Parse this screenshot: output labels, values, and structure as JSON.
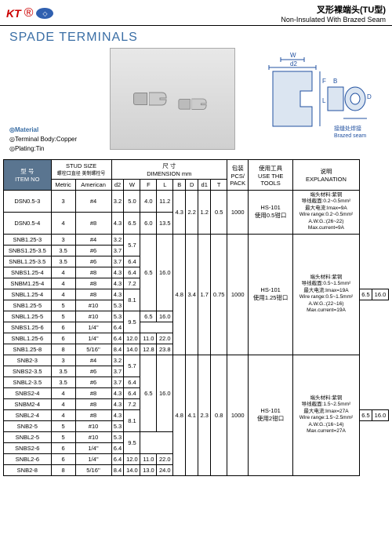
{
  "header": {
    "logo1": "KT",
    "title_cn": "叉形裸端头(TU型)",
    "title_en": "Non-Insulated With Brazed Seam"
  },
  "page_title": "SPADE TERMINALS",
  "material": {
    "h": "Material",
    "l1": "Terminal Body:Copper",
    "l2": "Plating:Tin"
  },
  "diagram": {
    "w": "W",
    "d2": "d2",
    "f": "F",
    "l": "L",
    "b": "B",
    "d": "D",
    "brazed_cn": "接缝处焊接",
    "brazed_en": "Brazed seam"
  },
  "thead": {
    "item_cn": "型 号",
    "item_en": "ITEM NO",
    "stud": "STUD SIZE",
    "stud_cn": "螺栓口直径 美制螺栓号",
    "metric": "Metric",
    "american": "American",
    "dim_cn": "尺 寸",
    "dim_en": "DIMENSION mm",
    "d2": "d2",
    "w": "W",
    "f": "F",
    "l": "L",
    "b": "B",
    "d": "D",
    "d1": "d1",
    "t": "T",
    "pack_cn": "包装",
    "pack_en": "PCS/\nPACK",
    "tool_cn": "使用工具",
    "tool_en": "USE THE\nTOOLS",
    "expl_cn": "说明",
    "expl_en": "EXPLANATION"
  },
  "rows": [
    {
      "i": "DSN0.5-3",
      "m": "3",
      "a": "#4",
      "d2": "3.2",
      "w": "5.0",
      "f": "4.0",
      "l": "11.2"
    },
    {
      "i": "DSN0.5-4",
      "m": "4",
      "a": "#8",
      "d2": "4.3",
      "w": "6.5",
      "f": "6.0",
      "l": "13.5"
    },
    {
      "i": "SNB1.25-3",
      "m": "3",
      "a": "#4",
      "d2": "3.2"
    },
    {
      "i": "SNBS1.25-3.5",
      "m": "3.5",
      "a": "#6",
      "d2": "3.7"
    },
    {
      "i": "SNBL1.25-3.5",
      "m": "3.5",
      "a": "#6",
      "d2": "3.7",
      "w": "6.4"
    },
    {
      "i": "SNBS1.25-4",
      "m": "4",
      "a": "#8",
      "d2": "4.3",
      "w": "6.4"
    },
    {
      "i": "SNBM1.25-4",
      "m": "4",
      "a": "#8",
      "d2": "4.3",
      "w": "7.2"
    },
    {
      "i": "SNBL1.25-4",
      "m": "4",
      "a": "#8",
      "d2": "4.3"
    },
    {
      "i": "SNB1.25-5",
      "m": "5",
      "a": "#10",
      "d2": "5.3"
    },
    {
      "i": "SNBL1.25-5",
      "m": "5",
      "a": "#10",
      "d2": "5.3"
    },
    {
      "i": "SNBS1.25-6",
      "m": "6",
      "a": "1/4''",
      "d2": "6.4"
    },
    {
      "i": "SNBL1.25-6",
      "m": "6",
      "a": "1/4''",
      "d2": "6.4",
      "w": "12.0",
      "f": "11.0",
      "l": "22.0"
    },
    {
      "i": "SNB1.25-8",
      "m": "8",
      "a": "5/16''",
      "d2": "8.4",
      "w": "14.0",
      "f": "12.8",
      "l": "23.8"
    },
    {
      "i": "SNB2-3",
      "m": "3",
      "a": "#4",
      "d2": "3.2"
    },
    {
      "i": "SNBS2-3.5",
      "m": "3.5",
      "a": "#6",
      "d2": "3.7"
    },
    {
      "i": "SNBL2-3.5",
      "m": "3.5",
      "a": "#6",
      "d2": "3.7",
      "w": "6.4"
    },
    {
      "i": "SNBS2-4",
      "m": "4",
      "a": "#8",
      "d2": "4.3",
      "w": "6.4"
    },
    {
      "i": "SNBM2-4",
      "m": "4",
      "a": "#8",
      "d2": "4.3",
      "w": "7.2"
    },
    {
      "i": "SNBL2-4",
      "m": "4",
      "a": "#8",
      "d2": "4.3"
    },
    {
      "i": "SNB2-5",
      "m": "5",
      "a": "#10",
      "d2": "5.3"
    },
    {
      "i": "SNBL2-5",
      "m": "5",
      "a": "#10",
      "d2": "5.3"
    },
    {
      "i": "SNBS2-6",
      "m": "6",
      "a": "1/4''",
      "d2": "6.4"
    },
    {
      "i": "SNBL2-6",
      "m": "6",
      "a": "1/4''",
      "d2": "6.4",
      "w": "12.0",
      "f": "11.0",
      "l": "22.0"
    },
    {
      "i": "SNB2-8",
      "m": "8",
      "a": "5/16''",
      "d2": "8.4",
      "w": "14.0",
      "f": "13.0",
      "l": "24.0"
    }
  ],
  "grp": {
    "g1": {
      "b": "4.3",
      "d": "2.2",
      "d1": "1.2",
      "t": "0.5",
      "pack": "1000",
      "tool": "HS-101\n使用0.5钳口",
      "expl": "端头材料:紫铜\n导线截面:0.2~0.5mm²\n最大电流:Imax=9A\nWire range:0.2~0.5mm²\nA.W.G.:(26~22)\nMax.current=9A"
    },
    "g2": {
      "b": "4.8",
      "d": "3.4",
      "d1": "1.7",
      "t": "0.75",
      "pack": "1000",
      "tool": "HS-101\n使用1.25钳口",
      "expl": "端头材料:紫铜\n导线截面:0.5~1.5mm²\n最大电流:Imax=19A\nWire range:0.5~1.5mm²\nA.W.G.:(22~16)\nMax.current=19A"
    },
    "g3": {
      "b": "4.8",
      "d": "4.1",
      "d1": "2.3",
      "t": "0.8",
      "pack": "1000",
      "tool": "HS-101\n使用2钳口",
      "expl": "端头材料:紫铜\n导线截面:1.5~2.5mm²\n最大电流:Imax=27A\nWire range:1.5~2.5mm²\nA.W.G.:(16~14)\nMax.current=27A"
    }
  },
  "shared": {
    "w57": "5.7",
    "w81": "8.1",
    "w95": "9.5",
    "f65": "6.5",
    "l160": "16.0"
  }
}
